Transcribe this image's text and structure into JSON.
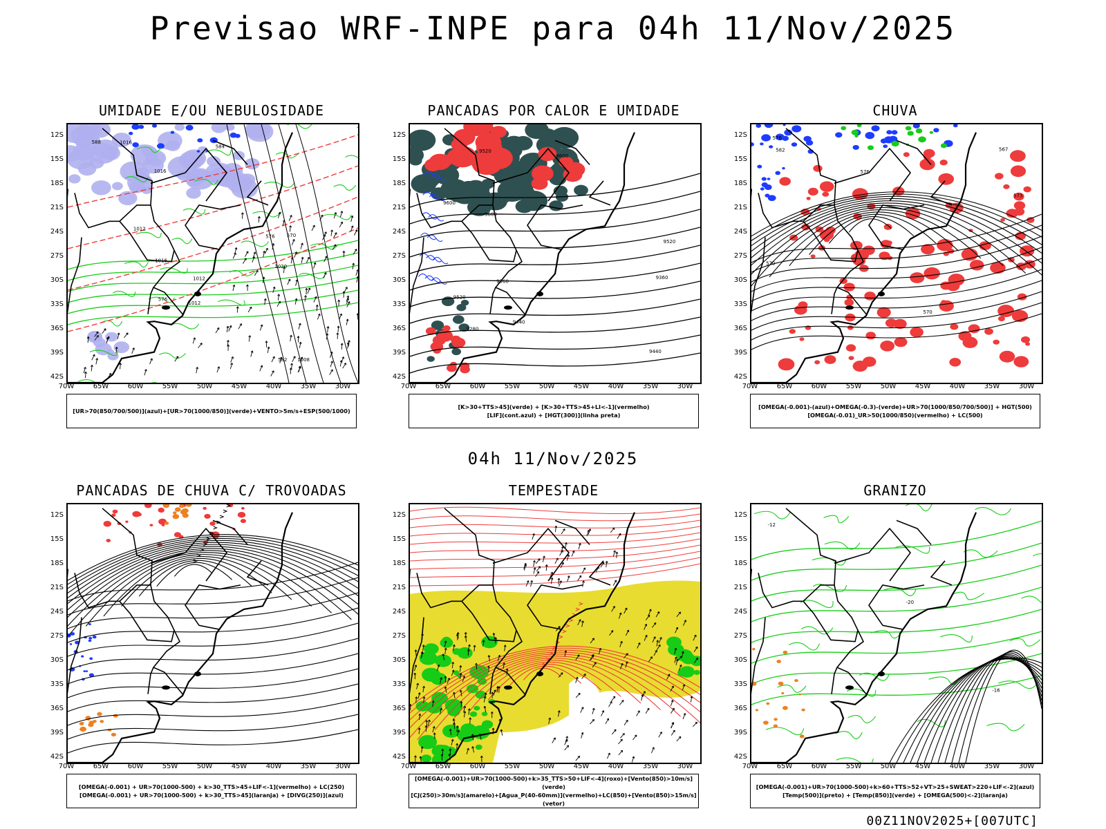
{
  "header": {
    "title": "Previsao WRF-INPE  para 04h 11/Nov/2025",
    "subtitle": "04h 11/Nov/2025",
    "footer": "00Z11NOV2025+[007UTC]"
  },
  "axes": {
    "lat_labels": [
      "12S",
      "15S",
      "18S",
      "21S",
      "24S",
      "27S",
      "30S",
      "33S",
      "36S",
      "39S",
      "42S"
    ],
    "lon_labels": [
      "70W",
      "65W",
      "60W",
      "55W",
      "50W",
      "45W",
      "40W",
      "35W",
      "30W"
    ]
  },
  "colors": {
    "red": "#ee3b3b",
    "green": "#16cc16",
    "blue": "#1e3cff",
    "lavender": "#b0b0f0",
    "darkteal": "#2f5050",
    "yellow": "#e8dc30",
    "orange": "#ee8020"
  },
  "panels": [
    {
      "id": "umidade",
      "title": "UMIDADE E/OU NEBULOSIDADE",
      "legend": [
        "[UR>70(850/700/500)](azul)+[UR>70(1000/850)](verde)+VENTO>5m/s+ESP(500/1000)"
      ],
      "contour_labels": [
        "1012",
        "1012",
        "1016",
        "1020",
        "1008",
        "1016",
        "1012",
        "1016",
        "576",
        "576",
        "570",
        "584",
        "588",
        "582"
      ]
    },
    {
      "id": "pancadas-calor",
      "title": "PANCADAS POR CALOR E UMIDADE",
      "legend": [
        "[K>30+TTS>45](verde) + [K>30+TTS>45+LI<-1](vermelho)",
        "[LIF](cont.azul) + [HGT(300)](linha preta)"
      ],
      "contour_labels": [
        "9600",
        "9520",
        "9600",
        "9440",
        "9360",
        "9520",
        "9440",
        "9360",
        "9280",
        "9520",
        "9600"
      ]
    },
    {
      "id": "chuva",
      "title": "CHUVA",
      "legend": [
        "[OMEGA(-0.001)-(azul)+OMEGA(-0.3)-(verde)+UR>70(1000/850/700/500)] + HGT(500)",
        "[OMEGA(-0.01)_UR>50(1000/850)(vermelho) + LC(500)"
      ],
      "contour_labels": [
        "582",
        "576",
        "570",
        "567",
        "573",
        "570",
        "576"
      ]
    },
    {
      "id": "trovoadas",
      "title": "PANCADAS DE CHUVA C/ TROVOADAS",
      "legend": [
        "[OMEGA(-0.001) + UR>70(1000-500) + k>30_TTS>45+LIF<-1](vermelho) + LC(250)",
        "[OMEGA(-0.001) + UR>70(1000-500) + k>30_TTS>45](laranja) + [DIVG(250)](azul)"
      ]
    },
    {
      "id": "tempestade",
      "title": "TEMPESTADE",
      "legend": [
        "[OMEGA(-0.001)+UR>70(1000-500)+k>35_TTS>50+LIF<-4](roxo)+[Vento(850)>10m/s](verde)",
        "[CJ(250)>30m/s](amarelo)+[Agua_P(40-60mm)](vermelho)+LC(850)+[Vento(850)>15m/s](vetor)"
      ]
    },
    {
      "id": "granizo",
      "title": "GRANIZO",
      "legend": [
        "[OMEGA(-0.001)+UR>70(1000-500)+k>60+TTS>52+VT>25+SWEAT>220+LIF<-2](azul)",
        "[Temp(500)](preto) + [Temp(850)](verde) + [OMEGA(500)<-2](laranja)"
      ],
      "contour_labels": [
        "-12",
        "-16",
        "-20"
      ]
    }
  ]
}
